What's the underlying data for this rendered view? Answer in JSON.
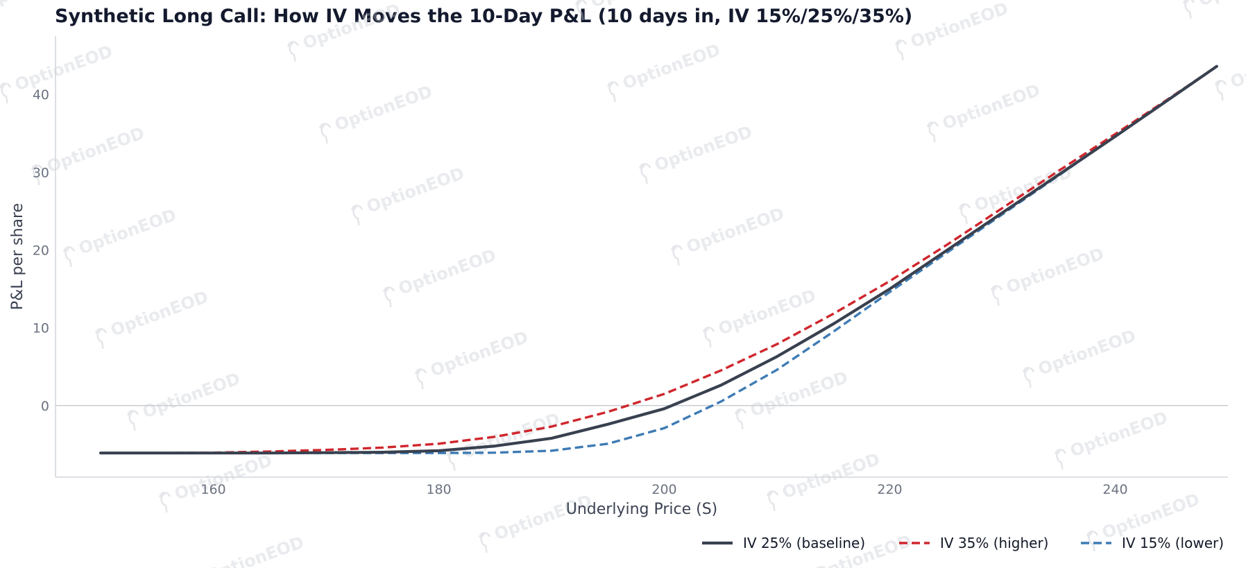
{
  "chart_data": {
    "type": "line",
    "title": "Synthetic Long Call: How IV Moves the 10-Day P&L (10 days in, IV 15%/25%/35%)",
    "xlabel": "Underlying Price (S)",
    "ylabel": "P&L per share",
    "xlim": [
      146,
      250
    ],
    "ylim": [
      -9.2,
      47.5
    ],
    "x_ticks": [
      160,
      180,
      200,
      220,
      240
    ],
    "y_ticks": [
      0,
      10,
      20,
      30,
      40
    ],
    "grid": false,
    "zero_line": true,
    "legend_position": "bottom-right",
    "watermark": "OptionEOD",
    "x": [
      150,
      155,
      160,
      165,
      170,
      175,
      180,
      185,
      190,
      195,
      200,
      205,
      210,
      215,
      220,
      225,
      230,
      235,
      240,
      245,
      249
    ],
    "series": [
      {
        "name": "IV 25% (baseline)",
        "color": "#394150",
        "style": "solid",
        "values": [
          -6.1,
          -6.1,
          -6.1,
          -6.1,
          -6.05,
          -6.0,
          -5.8,
          -5.2,
          -4.2,
          -2.4,
          -0.4,
          2.6,
          6.3,
          10.5,
          15.0,
          19.9,
          24.8,
          29.7,
          34.6,
          39.6,
          43.6
        ]
      },
      {
        "name": "IV 35% (higher)",
        "color": "#d0262d",
        "style": "dashed",
        "values": [
          -6.1,
          -6.1,
          -6.05,
          -5.9,
          -5.7,
          -5.4,
          -4.9,
          -4.0,
          -2.7,
          -0.8,
          1.5,
          4.5,
          7.9,
          11.8,
          16.0,
          20.6,
          25.4,
          30.2,
          34.9,
          39.7,
          43.6
        ]
      },
      {
        "name": "IV 15% (lower)",
        "color": "#3e7bb4",
        "style": "dashed",
        "values": [
          -6.1,
          -6.1,
          -6.1,
          -6.1,
          -6.1,
          -6.1,
          -6.1,
          -6.05,
          -5.8,
          -4.9,
          -2.9,
          0.5,
          4.6,
          9.5,
          14.6,
          19.6,
          24.6,
          29.6,
          34.6,
          39.6,
          43.6
        ]
      }
    ]
  }
}
